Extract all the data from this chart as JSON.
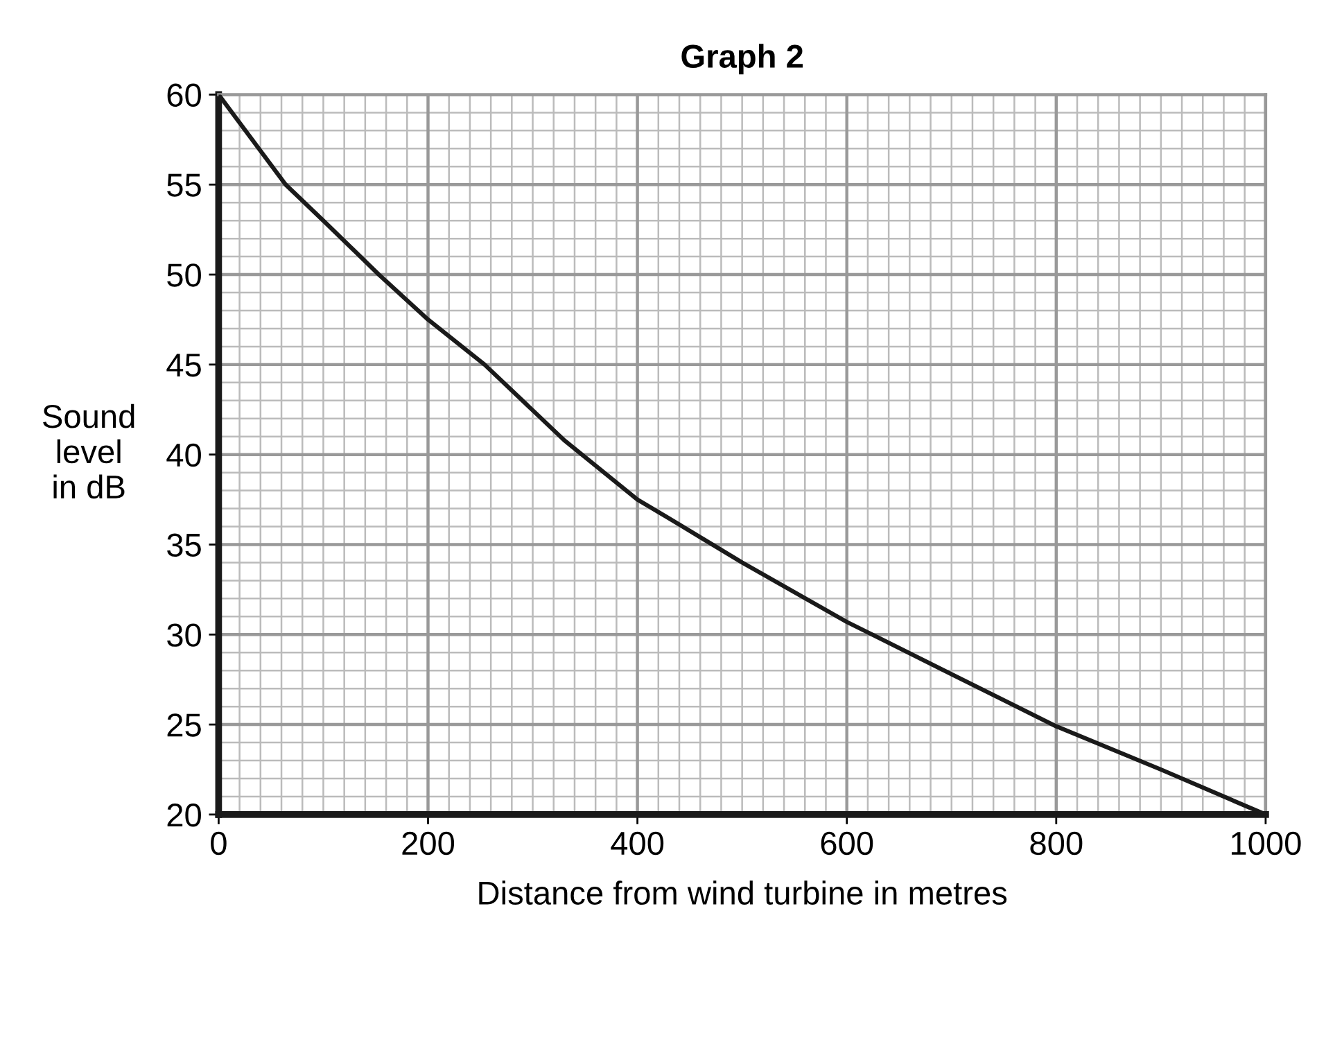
{
  "chart_data": {
    "type": "line",
    "title": "Graph 2",
    "xlabel": "Distance from wind turbine in metres",
    "ylabel": "Sound\nlevel\nin dB",
    "x": [
      0,
      64,
      100,
      153,
      200,
      254,
      330,
      400,
      429,
      500,
      600,
      700,
      800,
      900,
      1000
    ],
    "series": [
      {
        "color": "#1a1a1a",
        "values": [
          60,
          55,
          53,
          50,
          47.5,
          45,
          40.8,
          37.5,
          36.5,
          34,
          30.7,
          27.8,
          24.9,
          22.5,
          20
        ]
      }
    ],
    "xlim": [
      0,
      1000
    ],
    "ylim": [
      20,
      60
    ],
    "xticks": [
      0,
      200,
      400,
      600,
      800,
      1000
    ],
    "yticks": [
      20,
      25,
      30,
      35,
      40,
      45,
      50,
      55,
      60
    ],
    "grid": true,
    "marker": "none",
    "line_style": "solid"
  }
}
